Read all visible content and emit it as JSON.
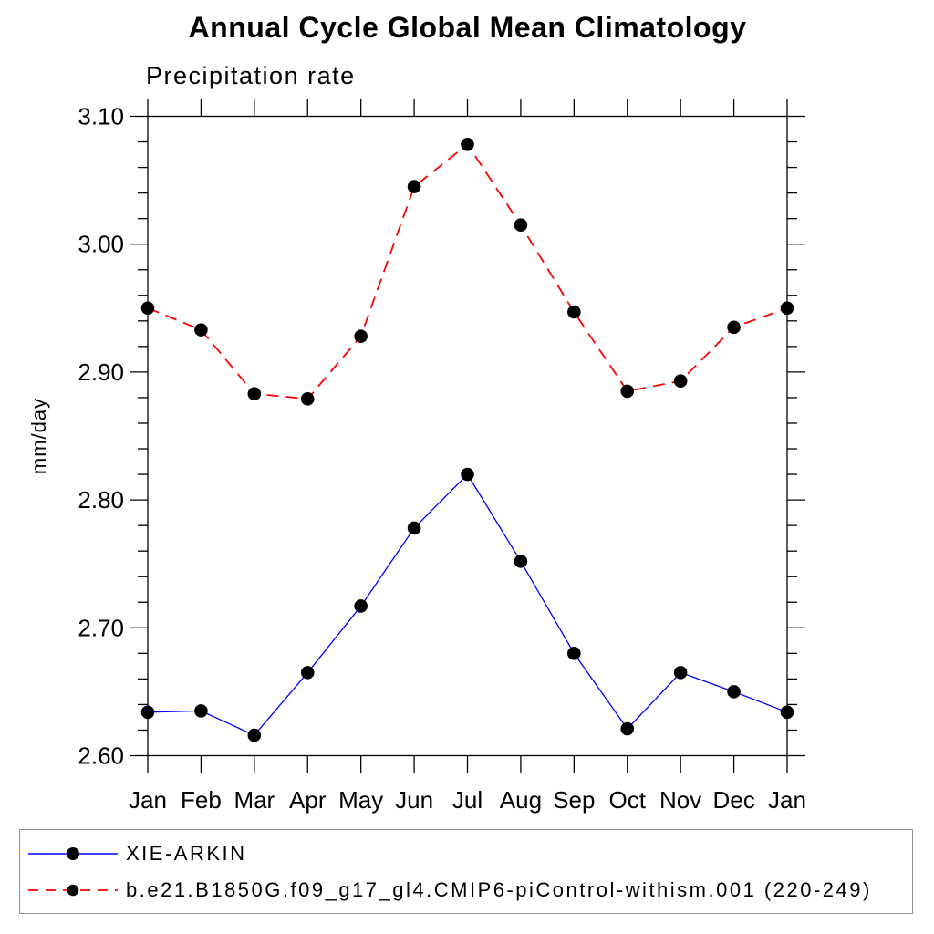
{
  "chart_data": {
    "type": "line",
    "title": "Annual Cycle Global Mean Climatology",
    "subtitle": "Precipitation rate",
    "ylabel": "mm/day",
    "xlabel": "",
    "categories": [
      "Jan",
      "Feb",
      "Mar",
      "Apr",
      "May",
      "Jun",
      "Jul",
      "Aug",
      "Sep",
      "Oct",
      "Nov",
      "Dec",
      "Jan"
    ],
    "ylim": [
      2.6,
      3.1
    ],
    "ytick_major_interval": 0.1,
    "ytick_minor_interval": 0.02,
    "ytick_labels": [
      "2.60",
      "2.70",
      "2.80",
      "2.90",
      "3.00",
      "3.10"
    ],
    "grid": false,
    "legend_position": "bottom-box",
    "background_color": "#ffffff",
    "axis_color": "#000000",
    "series": [
      {
        "name": "XIE-ARKIN",
        "line_color": "#0000ff",
        "line_style": "solid",
        "marker": "filled-circle",
        "marker_color": "#000000",
        "values": [
          2.634,
          2.635,
          2.616,
          2.665,
          2.717,
          2.778,
          2.82,
          2.752,
          2.68,
          2.621,
          2.665,
          2.65,
          2.634
        ]
      },
      {
        "name": "b.e21.B1850G.f09_g17_gl4.CMIP6-piControl-withism.001 (220-249)",
        "line_color": "#ff0000",
        "line_style": "dashed",
        "marker": "filled-circle",
        "marker_color": "#000000",
        "values": [
          2.95,
          2.933,
          2.883,
          2.879,
          2.928,
          3.045,
          3.078,
          3.015,
          2.947,
          2.885,
          2.893,
          2.935,
          2.95
        ]
      }
    ]
  }
}
